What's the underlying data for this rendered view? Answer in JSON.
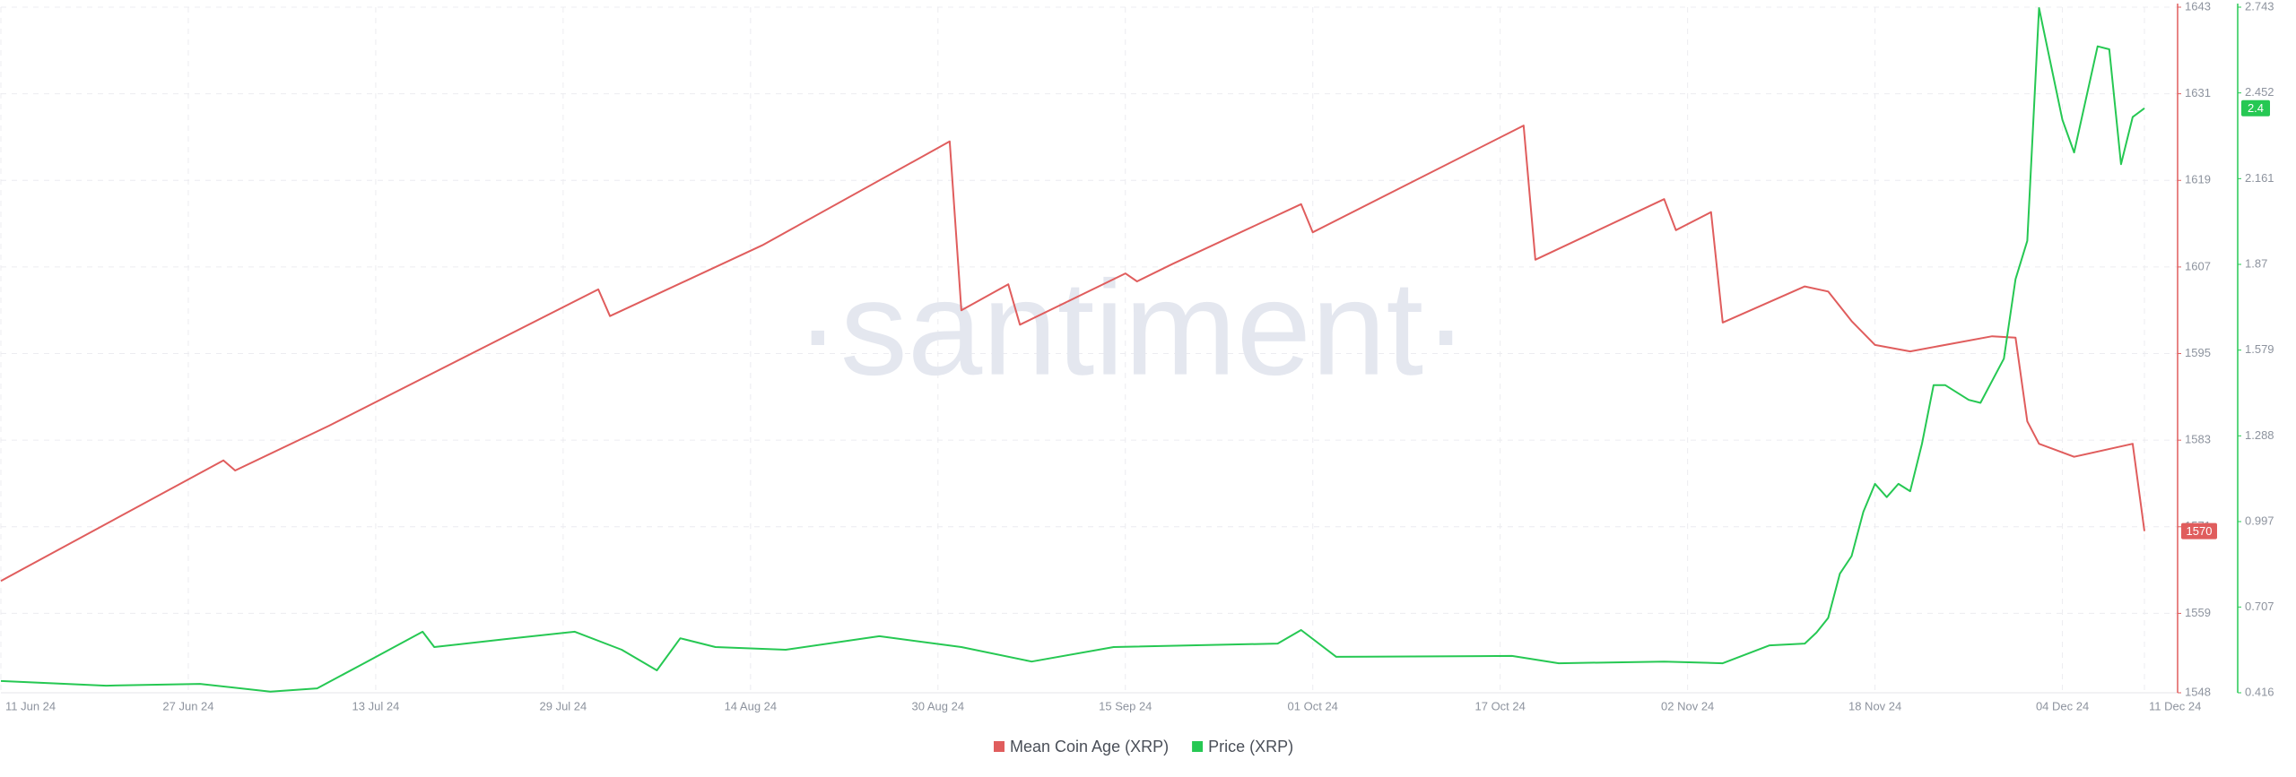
{
  "chart_data": {
    "type": "line",
    "watermark": "·santiment·",
    "xlim": [
      "2024-06-11",
      "2024-12-11"
    ],
    "xticks": [
      {
        "value": "2024-06-11",
        "label": "11 Jun 24"
      },
      {
        "value": "2024-06-27",
        "label": "27 Jun 24"
      },
      {
        "value": "2024-07-13",
        "label": "13 Jul 24"
      },
      {
        "value": "2024-07-29",
        "label": "29 Jul 24"
      },
      {
        "value": "2024-08-14",
        "label": "14 Aug 24"
      },
      {
        "value": "2024-08-30",
        "label": "30 Aug 24"
      },
      {
        "value": "2024-09-15",
        "label": "15 Sep 24"
      },
      {
        "value": "2024-10-01",
        "label": "01 Oct 24"
      },
      {
        "value": "2024-10-17",
        "label": "17 Oct 24"
      },
      {
        "value": "2024-11-02",
        "label": "02 Nov 24"
      },
      {
        "value": "2024-11-18",
        "label": "18 Nov 24"
      },
      {
        "value": "2024-12-04",
        "label": "04 Dec 24"
      },
      {
        "value": "2024-12-11",
        "label": "11 Dec 24"
      }
    ],
    "ylim": [
      1548,
      1643
    ],
    "yticks": [
      1548,
      1559,
      1571,
      1583,
      1595,
      1607,
      1619,
      1631,
      1643
    ],
    "y2lim": [
      0.416,
      2.743
    ],
    "y2ticks": [
      0.416,
      0.707,
      0.997,
      1.288,
      1.579,
      1.87,
      2.161,
      2.452,
      2.743
    ],
    "grid": true,
    "legend": "bottom",
    "series": [
      {
        "name": "Mean Coin Age (XRP)",
        "color": "#e05d5d",
        "axis": "y",
        "x": [
          "2024-06-11",
          "2024-06-30",
          "2024-07-01",
          "2024-07-09",
          "2024-08-01",
          "2024-08-02",
          "2024-08-15",
          "2024-08-31",
          "2024-09-01",
          "2024-09-05",
          "2024-09-06",
          "2024-09-15",
          "2024-09-16",
          "2024-09-19",
          "2024-09-30",
          "2024-10-01",
          "2024-10-19",
          "2024-10-20",
          "2024-10-31",
          "2024-11-01",
          "2024-11-04",
          "2024-11-05",
          "2024-11-12",
          "2024-11-14",
          "2024-11-16",
          "2024-11-18",
          "2024-11-21",
          "2024-11-28",
          "2024-11-30",
          "2024-12-01",
          "2024-12-02",
          "2024-12-05",
          "2024-12-10",
          "2024-12-11"
        ],
        "values": [
          1563.5,
          1580.2,
          1578.8,
          1585.0,
          1603.9,
          1600.2,
          1610.0,
          1624.4,
          1601.0,
          1604.6,
          1599.0,
          1606.1,
          1605.0,
          1607.4,
          1615.7,
          1611.8,
          1626.6,
          1608.0,
          1616.4,
          1612.1,
          1614.6,
          1599.3,
          1604.3,
          1603.6,
          1599.5,
          1596.2,
          1595.3,
          1597.4,
          1597.2,
          1585.6,
          1582.5,
          1580.7,
          1582.5,
          1570.4
        ],
        "value_labels": [
          null,
          null,
          null,
          null,
          null,
          null,
          null,
          null,
          null,
          null,
          null,
          null,
          null,
          null,
          null,
          null,
          null,
          null,
          null,
          null,
          null,
          null,
          null,
          null,
          null,
          null,
          null,
          null,
          null,
          null,
          null,
          null,
          null,
          "1570"
        ]
      },
      {
        "name": "Price (XRP)",
        "color": "#26c853",
        "axis": "y2",
        "x": [
          "2024-06-11",
          "2024-06-20",
          "2024-06-28",
          "2024-07-04",
          "2024-07-08",
          "2024-07-12",
          "2024-07-17",
          "2024-07-18",
          "2024-07-24",
          "2024-07-30",
          "2024-08-03",
          "2024-08-06",
          "2024-08-08",
          "2024-08-11",
          "2024-08-17",
          "2024-08-25",
          "2024-09-01",
          "2024-09-07",
          "2024-09-14",
          "2024-09-28",
          "2024-09-30",
          "2024-10-03",
          "2024-10-18",
          "2024-10-22",
          "2024-10-31",
          "2024-11-05",
          "2024-11-09",
          "2024-11-12",
          "2024-11-13",
          "2024-11-14",
          "2024-11-15",
          "2024-11-16",
          "2024-11-17",
          "2024-11-18",
          "2024-11-19",
          "2024-11-20",
          "2024-11-21",
          "2024-11-22",
          "2024-11-23",
          "2024-11-24",
          "2024-11-26",
          "2024-11-27",
          "2024-11-29",
          "2024-11-30",
          "2024-12-01",
          "2024-12-02",
          "2024-12-04",
          "2024-12-05",
          "2024-12-07",
          "2024-12-08",
          "2024-12-09",
          "2024-12-10",
          "2024-12-11"
        ],
        "values": [
          0.456,
          0.44,
          0.446,
          0.42,
          0.431,
          0.516,
          0.623,
          0.571,
          0.598,
          0.623,
          0.562,
          0.492,
          0.601,
          0.571,
          0.562,
          0.608,
          0.571,
          0.522,
          0.571,
          0.583,
          0.629,
          0.538,
          0.541,
          0.516,
          0.522,
          0.516,
          0.577,
          0.583,
          0.62,
          0.67,
          0.82,
          0.88,
          1.03,
          1.125,
          1.08,
          1.125,
          1.1,
          1.26,
          1.46,
          1.46,
          1.41,
          1.4,
          1.55,
          1.82,
          1.95,
          2.74,
          2.36,
          2.25,
          2.61,
          2.6,
          2.21,
          2.37,
          2.4
        ],
        "value_labels": [
          null,
          null,
          null,
          null,
          null,
          null,
          null,
          null,
          null,
          null,
          null,
          null,
          null,
          null,
          null,
          null,
          null,
          null,
          null,
          null,
          null,
          null,
          null,
          null,
          null,
          null,
          null,
          null,
          null,
          null,
          null,
          null,
          null,
          null,
          null,
          null,
          null,
          null,
          null,
          null,
          null,
          null,
          null,
          null,
          null,
          null,
          null,
          null,
          null,
          null,
          null,
          null,
          "2.4"
        ]
      }
    ]
  }
}
